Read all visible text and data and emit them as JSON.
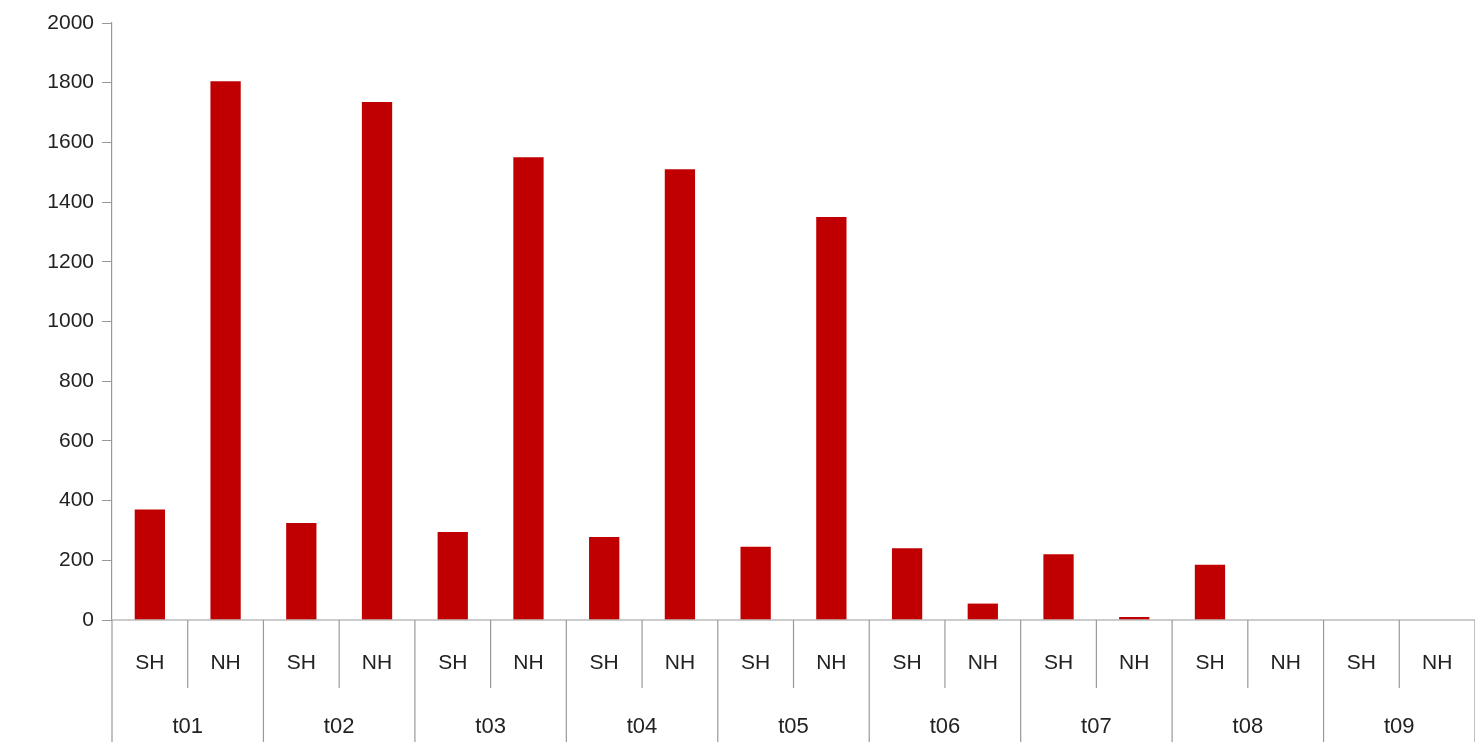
{
  "chart_data": {
    "type": "bar",
    "categories": [
      "t01",
      "t02",
      "t03",
      "t04",
      "t05",
      "t06",
      "t07",
      "t08",
      "t09"
    ],
    "series": [
      {
        "name": "SH",
        "color": "#c00000",
        "values": [
          370,
          325,
          295,
          278,
          245,
          240,
          220,
          185,
          0
        ]
      },
      {
        "name": "NH",
        "color": "#c00000",
        "values": [
          1805,
          1735,
          1550,
          1510,
          1350,
          55,
          10,
          0,
          0
        ]
      }
    ],
    "ylim": [
      0,
      2000
    ],
    "yticks": [
      0,
      200,
      400,
      600,
      800,
      1000,
      1200,
      1400,
      1600,
      1800,
      2000
    ]
  }
}
